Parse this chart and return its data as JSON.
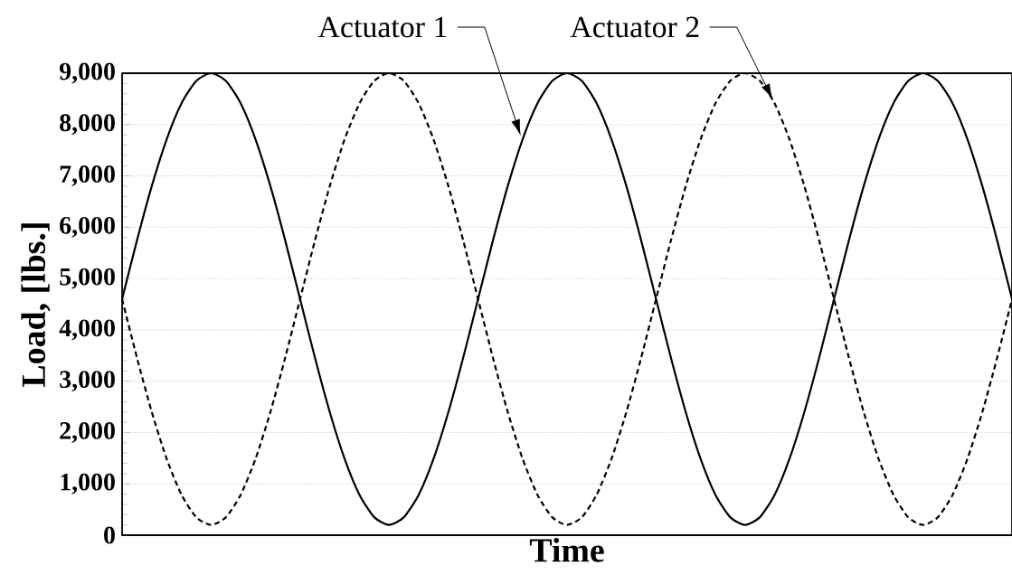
{
  "chart_data": {
    "type": "line",
    "xlabel": "Time",
    "ylabel": "Load, [lbs.]",
    "categories": [
      null,
      null,
      null,
      null,
      null,
      null,
      null,
      null,
      null,
      null,
      null,
      null,
      null,
      null,
      null,
      null,
      null,
      null,
      null,
      null,
      null,
      null,
      null,
      null,
      null,
      null,
      null,
      null,
      null,
      null,
      null,
      null,
      null,
      null,
      null,
      null,
      null,
      null,
      null,
      null,
      null,
      null,
      null,
      null,
      null,
      null,
      null,
      null,
      null,
      null,
      null,
      null,
      null,
      null,
      null,
      null,
      null,
      null,
      null,
      null,
      null
    ],
    "series": [
      {
        "name": "Actuator 1",
        "color": "#000000",
        "line_style": "solid",
        "values": [
          4600,
          5740,
          6800,
          7710,
          8410,
          8850,
          9000,
          8850,
          8410,
          7710,
          6800,
          5740,
          4600,
          3460,
          2400,
          1490,
          790,
          350,
          200,
          350,
          790,
          1490,
          2400,
          3460,
          4600,
          5740,
          6800,
          7710,
          8410,
          8850,
          9000,
          8850,
          8410,
          7710,
          6800,
          5740,
          4600,
          3460,
          2400,
          1490,
          790,
          350,
          200,
          350,
          790,
          1490,
          2400,
          3460,
          4600,
          5740,
          6800,
          7710,
          8410,
          8850,
          9000,
          8850,
          8410,
          7710,
          6800,
          5740,
          4600
        ]
      },
      {
        "name": "Actuator 2",
        "color": "#000000",
        "line_style": "dashed",
        "values": [
          4600,
          3460,
          2400,
          1490,
          790,
          350,
          200,
          350,
          790,
          1490,
          2400,
          3460,
          4600,
          5740,
          6800,
          7710,
          8410,
          8850,
          9000,
          8850,
          8410,
          7710,
          6800,
          5740,
          4600,
          3460,
          2400,
          1490,
          790,
          350,
          200,
          350,
          790,
          1490,
          2400,
          3460,
          4600,
          5740,
          6800,
          7710,
          8410,
          8850,
          9000,
          8850,
          8410,
          7710,
          6800,
          5740,
          4600,
          3460,
          2400,
          1490,
          790,
          350,
          200,
          350,
          790,
          1490,
          2400,
          3460,
          4600
        ]
      }
    ],
    "ylim": [
      0,
      9000
    ],
    "yticks": [
      0,
      {
        "value": 1000,
        "label": "1,000"
      },
      {
        "value": 2000,
        "label": "2,000"
      },
      {
        "value": 3000,
        "label": "3,000"
      },
      {
        "value": 4000,
        "label": "4,000"
      },
      {
        "value": 5000,
        "label": "5,000"
      },
      {
        "value": 6000,
        "label": "6,000"
      },
      {
        "value": 7000,
        "label": "7,000"
      },
      {
        "value": 8000,
        "label": "8,000"
      },
      {
        "value": 9000,
        "label": "9,000"
      }
    ],
    "grid": "y",
    "marker": "none"
  }
}
